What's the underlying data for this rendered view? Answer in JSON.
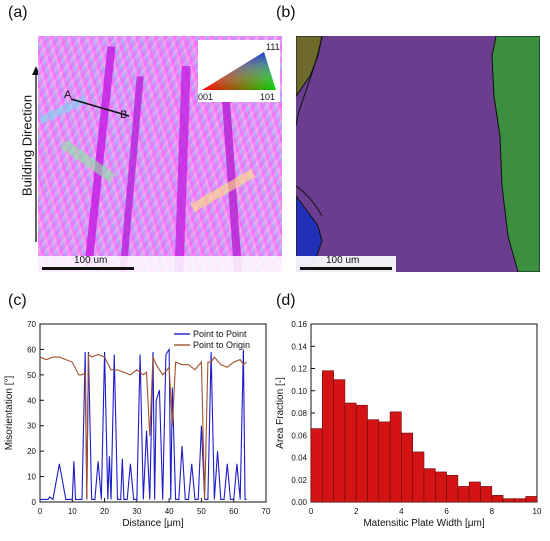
{
  "panels": {
    "a": {
      "label": "(a)",
      "side_label": "Building Direction",
      "scale_bar": "100 um",
      "legend": {
        "top": "111",
        "bottom_left": "001",
        "bottom_right": "101"
      },
      "line_start": "A",
      "line_end": "B"
    },
    "b": {
      "label": "(b)",
      "scale_bar": "100 um",
      "colors": {
        "olive": "#6e6a2c",
        "purple": "#6a3d8e",
        "green": "#3b8f3e",
        "blue": "#2230b8"
      }
    },
    "c": {
      "label": "(c)"
    },
    "d": {
      "label": "(d)"
    }
  },
  "chart_data": [
    {
      "type": "line",
      "panel": "c",
      "xlabel": "Distance [μm]",
      "ylabel": "Misorientation [°]",
      "xlim": [
        0,
        70
      ],
      "ylim": [
        0,
        70
      ],
      "xticks": [
        0,
        10,
        20,
        30,
        40,
        50,
        60,
        70
      ],
      "yticks": [
        0,
        10,
        20,
        30,
        40,
        50,
        60,
        70
      ],
      "legend_position": "top-right",
      "series": [
        {
          "name": "Point to Point",
          "color": "#1c1cc8",
          "x": [
            0,
            2,
            2.5,
            3,
            4,
            6,
            8,
            10,
            10.5,
            11,
            12,
            13,
            14,
            14.5,
            15,
            16,
            17,
            18,
            19,
            20,
            21,
            21.5,
            22,
            23,
            24,
            25,
            25.5,
            26,
            27,
            28,
            29,
            30,
            31,
            32,
            33,
            34,
            35,
            35.5,
            36,
            37,
            38,
            39,
            40,
            40.5,
            41,
            42,
            43,
            44,
            45,
            46,
            47,
            48,
            49,
            50,
            51,
            52,
            53,
            54,
            55,
            56,
            57,
            58,
            59,
            60,
            61,
            62,
            63,
            63.5,
            64
          ],
          "y": [
            1,
            1,
            1,
            2,
            1,
            15,
            1,
            1,
            16,
            1,
            1,
            1,
            59,
            1,
            59,
            1,
            1,
            16,
            1,
            59,
            1,
            18,
            1,
            58,
            1,
            1,
            17,
            1,
            1,
            15,
            1,
            1,
            58,
            1,
            28,
            1,
            59,
            1,
            40,
            44,
            1,
            58,
            60,
            1,
            45,
            1,
            1,
            22,
            1,
            1,
            15,
            1,
            1,
            30,
            1,
            1,
            59,
            1,
            20,
            1,
            1,
            15,
            1,
            1,
            15,
            1,
            60,
            1,
            1
          ]
        },
        {
          "name": "Point to Origin",
          "color": "#a0522d",
          "x": [
            0,
            2,
            4,
            6,
            8,
            10,
            12,
            13,
            14,
            14.5,
            15,
            16,
            18,
            20,
            22,
            24,
            26,
            28,
            30,
            32,
            33,
            34,
            35,
            36,
            38,
            40,
            41,
            42,
            44,
            46,
            48,
            50,
            51,
            52,
            53,
            54,
            56,
            58,
            60,
            62,
            63,
            64
          ],
          "y": [
            57,
            56,
            57,
            57,
            56,
            55,
            50,
            50,
            51,
            1,
            58,
            57,
            58,
            57,
            52,
            52,
            51,
            50,
            52,
            50,
            51,
            26,
            57,
            54,
            50,
            53,
            30,
            55,
            54,
            54,
            52,
            55,
            1,
            55,
            55,
            57,
            54,
            53,
            55,
            56,
            54,
            55
          ]
        }
      ]
    },
    {
      "type": "bar",
      "panel": "d",
      "xlabel": "Matensitic Plate Width [μm]",
      "ylabel": "Area Fraction [-]",
      "xlim": [
        0,
        10
      ],
      "ylim": [
        0,
        0.16
      ],
      "xticks": [
        0,
        2,
        4,
        6,
        8,
        10
      ],
      "yticks": [
        0.0,
        0.02,
        0.04,
        0.06,
        0.08,
        0.1,
        0.12,
        0.14,
        0.16
      ],
      "bar_color": "#d41414",
      "bin_width": 0.5,
      "categories": [
        0,
        0.5,
        1,
        1.5,
        2,
        2.5,
        3,
        3.5,
        4,
        4.5,
        5,
        5.5,
        6,
        6.5,
        7,
        7.5,
        8,
        8.5,
        9,
        9.5
      ],
      "values": [
        0.066,
        0.118,
        0.11,
        0.089,
        0.087,
        0.074,
        0.072,
        0.081,
        0.062,
        0.045,
        0.03,
        0.027,
        0.024,
        0.014,
        0.018,
        0.014,
        0.006,
        0.003,
        0.003,
        0.005
      ]
    }
  ]
}
